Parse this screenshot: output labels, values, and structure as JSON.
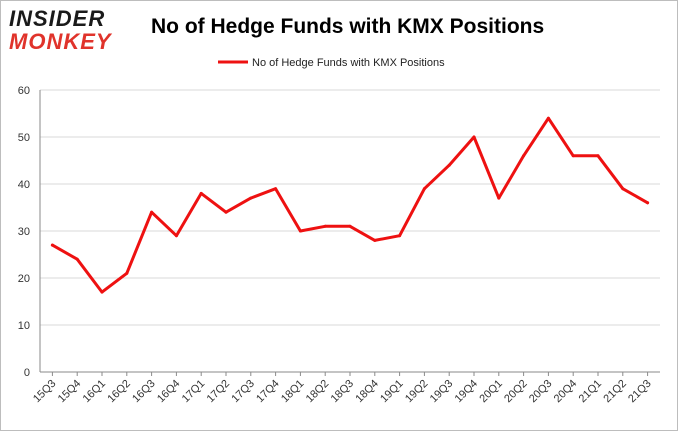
{
  "logo": {
    "line1": "INSIDER",
    "line2": "MONKEY"
  },
  "chart_data": {
    "type": "line",
    "title": "No of Hedge Funds with KMX Positions",
    "xlabel": "",
    "ylabel": "",
    "ylim": [
      0,
      60
    ],
    "yticks": [
      0,
      10,
      20,
      30,
      40,
      50,
      60
    ],
    "grid": true,
    "legend_position": "top-center",
    "categories": [
      "15Q3",
      "15Q4",
      "16Q1",
      "16Q2",
      "16Q3",
      "16Q4",
      "17Q1",
      "17Q2",
      "17Q3",
      "17Q4",
      "18Q1",
      "18Q2",
      "18Q3",
      "18Q4",
      "19Q1",
      "19Q2",
      "19Q3",
      "19Q4",
      "20Q1",
      "20Q2",
      "20Q3",
      "20Q4",
      "21Q1",
      "21Q2",
      "21Q3"
    ],
    "series": [
      {
        "name": "No of Hedge Funds with KMX Positions",
        "color": "#ee1111",
        "values": [
          27,
          24,
          17,
          21,
          34,
          29,
          38,
          34,
          37,
          39,
          30,
          31,
          31,
          28,
          29,
          39,
          44,
          50,
          37,
          46,
          54,
          46,
          46,
          39,
          36
        ]
      }
    ]
  }
}
